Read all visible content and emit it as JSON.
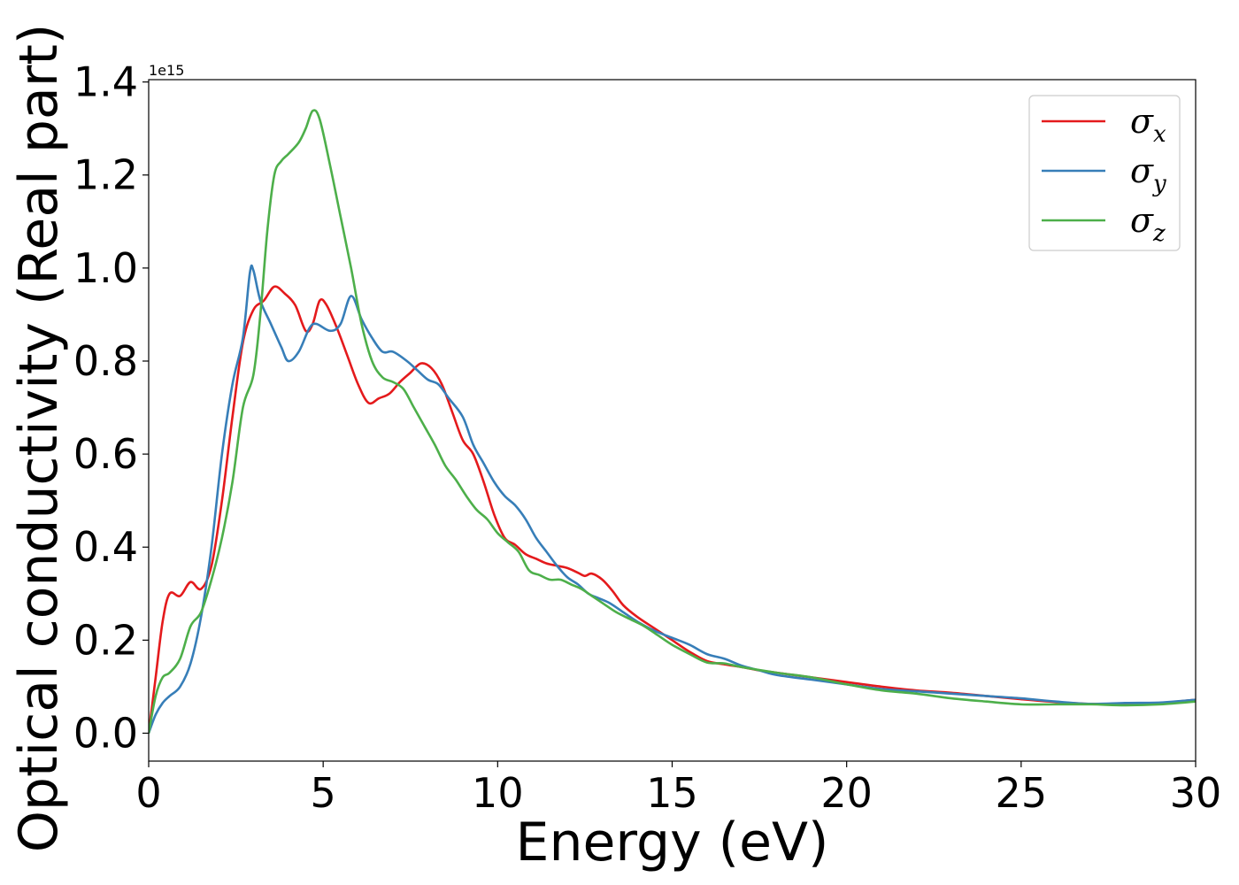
{
  "chart_data": {
    "type": "line",
    "title": "",
    "xlabel": "Energy (eV)",
    "ylabel": "Optical conductivity (Real part)",
    "y_offset_label": "1e15",
    "xlim": [
      0,
      30
    ],
    "ylim": [
      -0.06,
      1.405
    ],
    "x_ticks": [
      0,
      5,
      10,
      15,
      20,
      25,
      30
    ],
    "x_tick_labels": [
      "0",
      "5",
      "10",
      "15",
      "20",
      "25",
      "30"
    ],
    "y_ticks": [
      0.0,
      0.2,
      0.4,
      0.6,
      0.8,
      1.0,
      1.2,
      1.4
    ],
    "y_tick_labels": [
      "0.0",
      "0.2",
      "0.4",
      "0.6",
      "0.8",
      "1.0",
      "1.2",
      "1.4"
    ],
    "grid": false,
    "legend_position": "top-right",
    "series": [
      {
        "name": "σ",
        "subscript": "x",
        "color": "#e41a1c",
        "points": [
          [
            0,
            0
          ],
          [
            0.2,
            0.12
          ],
          [
            0.4,
            0.24
          ],
          [
            0.6,
            0.3
          ],
          [
            0.9,
            0.295
          ],
          [
            1.2,
            0.325
          ],
          [
            1.5,
            0.31
          ],
          [
            1.8,
            0.36
          ],
          [
            2.1,
            0.5
          ],
          [
            2.4,
            0.68
          ],
          [
            2.7,
            0.84
          ],
          [
            3.0,
            0.91
          ],
          [
            3.3,
            0.93
          ],
          [
            3.6,
            0.96
          ],
          [
            3.9,
            0.945
          ],
          [
            4.2,
            0.92
          ],
          [
            4.5,
            0.865
          ],
          [
            4.7,
            0.88
          ],
          [
            4.9,
            0.93
          ],
          [
            5.1,
            0.92
          ],
          [
            5.4,
            0.87
          ],
          [
            5.7,
            0.81
          ],
          [
            6.0,
            0.75
          ],
          [
            6.3,
            0.71
          ],
          [
            6.6,
            0.72
          ],
          [
            6.9,
            0.73
          ],
          [
            7.2,
            0.755
          ],
          [
            7.5,
            0.775
          ],
          [
            7.8,
            0.795
          ],
          [
            8.1,
            0.785
          ],
          [
            8.4,
            0.75
          ],
          [
            8.7,
            0.69
          ],
          [
            9.0,
            0.63
          ],
          [
            9.3,
            0.6
          ],
          [
            9.6,
            0.54
          ],
          [
            9.9,
            0.47
          ],
          [
            10.2,
            0.42
          ],
          [
            10.5,
            0.405
          ],
          [
            10.8,
            0.385
          ],
          [
            11.1,
            0.375
          ],
          [
            11.4,
            0.365
          ],
          [
            11.7,
            0.36
          ],
          [
            12.0,
            0.355
          ],
          [
            12.3,
            0.345
          ],
          [
            12.5,
            0.338
          ],
          [
            12.7,
            0.343
          ],
          [
            13.0,
            0.33
          ],
          [
            13.3,
            0.305
          ],
          [
            13.6,
            0.275
          ],
          [
            14.0,
            0.25
          ],
          [
            14.5,
            0.225
          ],
          [
            15.0,
            0.2
          ],
          [
            15.5,
            0.175
          ],
          [
            16.0,
            0.155
          ],
          [
            16.5,
            0.148
          ],
          [
            17.0,
            0.142
          ],
          [
            17.5,
            0.135
          ],
          [
            18.0,
            0.13
          ],
          [
            19.0,
            0.12
          ],
          [
            20.0,
            0.11
          ],
          [
            21.0,
            0.1
          ],
          [
            22.0,
            0.092
          ],
          [
            23.0,
            0.087
          ],
          [
            24.0,
            0.08
          ],
          [
            25.0,
            0.073
          ],
          [
            26.0,
            0.067
          ],
          [
            27.0,
            0.063
          ],
          [
            28.0,
            0.063
          ],
          [
            29.0,
            0.065
          ],
          [
            30.0,
            0.072
          ]
        ]
      },
      {
        "name": "σ",
        "subscript": "y",
        "color": "#377eb8",
        "points": [
          [
            0,
            0
          ],
          [
            0.2,
            0.04
          ],
          [
            0.4,
            0.065
          ],
          [
            0.6,
            0.08
          ],
          [
            0.9,
            0.1
          ],
          [
            1.2,
            0.15
          ],
          [
            1.5,
            0.25
          ],
          [
            1.8,
            0.4
          ],
          [
            2.1,
            0.6
          ],
          [
            2.4,
            0.75
          ],
          [
            2.7,
            0.85
          ],
          [
            2.9,
            0.99
          ],
          [
            3.0,
            0.995
          ],
          [
            3.2,
            0.93
          ],
          [
            3.5,
            0.88
          ],
          [
            3.8,
            0.83
          ],
          [
            4.0,
            0.8
          ],
          [
            4.3,
            0.82
          ],
          [
            4.6,
            0.87
          ],
          [
            4.8,
            0.88
          ],
          [
            5.2,
            0.865
          ],
          [
            5.5,
            0.88
          ],
          [
            5.8,
            0.94
          ],
          [
            6.1,
            0.89
          ],
          [
            6.4,
            0.85
          ],
          [
            6.7,
            0.82
          ],
          [
            7.0,
            0.82
          ],
          [
            7.4,
            0.8
          ],
          [
            7.7,
            0.78
          ],
          [
            8.0,
            0.76
          ],
          [
            8.3,
            0.75
          ],
          [
            8.6,
            0.72
          ],
          [
            9.0,
            0.68
          ],
          [
            9.3,
            0.62
          ],
          [
            9.6,
            0.58
          ],
          [
            9.9,
            0.54
          ],
          [
            10.2,
            0.51
          ],
          [
            10.5,
            0.49
          ],
          [
            10.8,
            0.46
          ],
          [
            11.1,
            0.42
          ],
          [
            11.4,
            0.39
          ],
          [
            11.7,
            0.36
          ],
          [
            12.0,
            0.335
          ],
          [
            12.3,
            0.32
          ],
          [
            12.6,
            0.3
          ],
          [
            12.9,
            0.29
          ],
          [
            13.2,
            0.28
          ],
          [
            13.6,
            0.26
          ],
          [
            14.0,
            0.24
          ],
          [
            14.5,
            0.22
          ],
          [
            15.0,
            0.205
          ],
          [
            15.5,
            0.19
          ],
          [
            16.0,
            0.17
          ],
          [
            16.5,
            0.16
          ],
          [
            17.0,
            0.145
          ],
          [
            17.5,
            0.135
          ],
          [
            18.0,
            0.125
          ],
          [
            19.0,
            0.115
          ],
          [
            20.0,
            0.105
          ],
          [
            21.0,
            0.095
          ],
          [
            22.0,
            0.09
          ],
          [
            23.0,
            0.085
          ],
          [
            24.0,
            0.08
          ],
          [
            25.0,
            0.075
          ],
          [
            26.0,
            0.068
          ],
          [
            27.0,
            0.063
          ],
          [
            28.0,
            0.065
          ],
          [
            29.0,
            0.066
          ],
          [
            30.0,
            0.072
          ]
        ]
      },
      {
        "name": "σ",
        "subscript": "z",
        "color": "#4daf4a",
        "points": [
          [
            0,
            0
          ],
          [
            0.2,
            0.08
          ],
          [
            0.4,
            0.12
          ],
          [
            0.6,
            0.13
          ],
          [
            0.9,
            0.16
          ],
          [
            1.2,
            0.23
          ],
          [
            1.5,
            0.26
          ],
          [
            1.8,
            0.33
          ],
          [
            2.1,
            0.42
          ],
          [
            2.4,
            0.54
          ],
          [
            2.7,
            0.7
          ],
          [
            3.0,
            0.77
          ],
          [
            3.2,
            0.9
          ],
          [
            3.4,
            1.08
          ],
          [
            3.6,
            1.2
          ],
          [
            3.8,
            1.23
          ],
          [
            4.0,
            1.245
          ],
          [
            4.3,
            1.27
          ],
          [
            4.5,
            1.3
          ],
          [
            4.7,
            1.338
          ],
          [
            4.9,
            1.32
          ],
          [
            5.2,
            1.22
          ],
          [
            5.5,
            1.11
          ],
          [
            5.8,
            1.0
          ],
          [
            6.1,
            0.88
          ],
          [
            6.4,
            0.8
          ],
          [
            6.7,
            0.765
          ],
          [
            7.0,
            0.755
          ],
          [
            7.3,
            0.74
          ],
          [
            7.6,
            0.7
          ],
          [
            7.9,
            0.66
          ],
          [
            8.2,
            0.62
          ],
          [
            8.5,
            0.575
          ],
          [
            8.8,
            0.545
          ],
          [
            9.1,
            0.51
          ],
          [
            9.4,
            0.48
          ],
          [
            9.7,
            0.46
          ],
          [
            10.0,
            0.43
          ],
          [
            10.3,
            0.41
          ],
          [
            10.6,
            0.39
          ],
          [
            10.9,
            0.35
          ],
          [
            11.2,
            0.34
          ],
          [
            11.5,
            0.33
          ],
          [
            11.8,
            0.33
          ],
          [
            12.1,
            0.32
          ],
          [
            12.4,
            0.31
          ],
          [
            12.7,
            0.295
          ],
          [
            13.0,
            0.28
          ],
          [
            13.4,
            0.26
          ],
          [
            13.8,
            0.245
          ],
          [
            14.2,
            0.23
          ],
          [
            14.6,
            0.21
          ],
          [
            15.0,
            0.19
          ],
          [
            15.5,
            0.17
          ],
          [
            16.0,
            0.152
          ],
          [
            16.5,
            0.15
          ],
          [
            17.0,
            0.142
          ],
          [
            18.0,
            0.13
          ],
          [
            19.0,
            0.12
          ],
          [
            20.0,
            0.105
          ],
          [
            21.0,
            0.092
          ],
          [
            22.0,
            0.085
          ],
          [
            23.0,
            0.075
          ],
          [
            24.0,
            0.068
          ],
          [
            25.0,
            0.062
          ],
          [
            26.0,
            0.062
          ],
          [
            27.0,
            0.062
          ],
          [
            28.0,
            0.06
          ],
          [
            29.0,
            0.062
          ],
          [
            30.0,
            0.068
          ]
        ]
      }
    ]
  }
}
